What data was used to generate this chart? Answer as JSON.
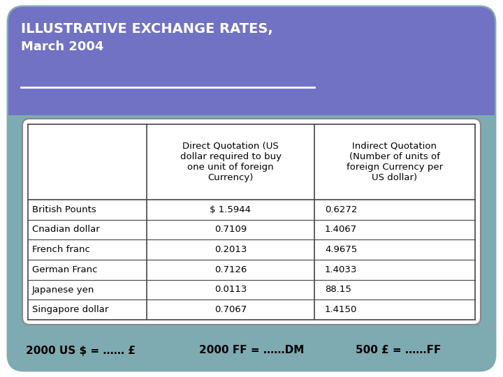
{
  "title_line1": "ILLUSTRATIVE EXCHANGE RATES,",
  "title_line2": "March 2004",
  "title_bg_color": "#7272C4",
  "title_text_color": "#FFFFFF",
  "outer_bg_color": "#7EAAB2",
  "inner_bg_color": "#FFFFFF",
  "page_bg_color": "#FFFFFF",
  "table_border_color": "#444444",
  "col_headers": [
    "",
    "Direct Quotation (US\ndollar required to buy\none unit of foreign\nCurrency)",
    "Indirect Quotation\n(Number of units of\nforeign Currency per\nUS dollar)"
  ],
  "row_labels": [
    "British Pounts",
    "Cnadian dollar",
    "French franc",
    "German Franc",
    "Japanese yen",
    "Singapore dollar"
  ],
  "direct_quotation": [
    "$ 1.5944",
    "  0.7109",
    "  0.2013",
    "  0.7126",
    "  0.0113",
    "  0.7067"
  ],
  "indirect_quotation": [
    "0.6272",
    "1.4067",
    "4.9675",
    "1.4033",
    "88.15",
    "1.4150"
  ],
  "footer_items": [
    "2000 US $ = …… £",
    "2000 FF = ……DM",
    "500 £ = ……FF"
  ],
  "footer_color": "#000000",
  "font_size_title1": 14,
  "font_size_title2": 13,
  "font_size_table_header": 9.5,
  "font_size_table_data": 9.5,
  "font_size_footer": 11
}
